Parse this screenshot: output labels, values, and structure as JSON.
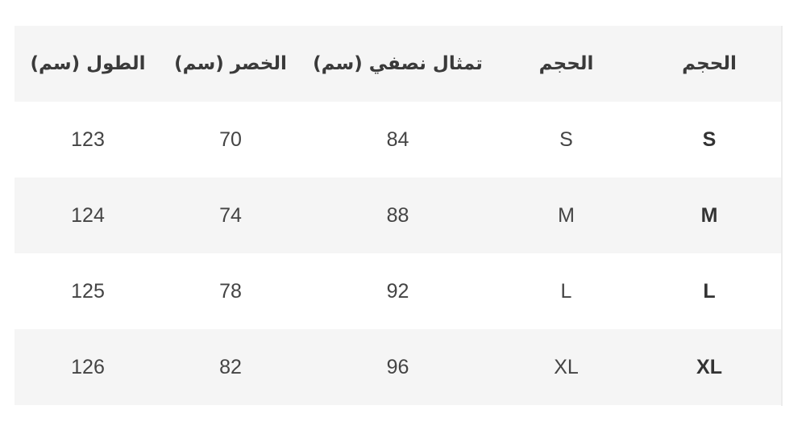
{
  "table": {
    "headers": [
      "الحجم",
      "الحجم",
      "تمثال نصفي (سم)",
      "الخصر (سم)",
      "الطول (سم)"
    ],
    "rows": [
      [
        "S",
        "S",
        "84",
        "70",
        "123"
      ],
      [
        "M",
        "M",
        "88",
        "74",
        "124"
      ],
      [
        "L",
        "L",
        "92",
        "78",
        "125"
      ],
      [
        "XL",
        "XL",
        "96",
        "82",
        "126"
      ]
    ]
  }
}
